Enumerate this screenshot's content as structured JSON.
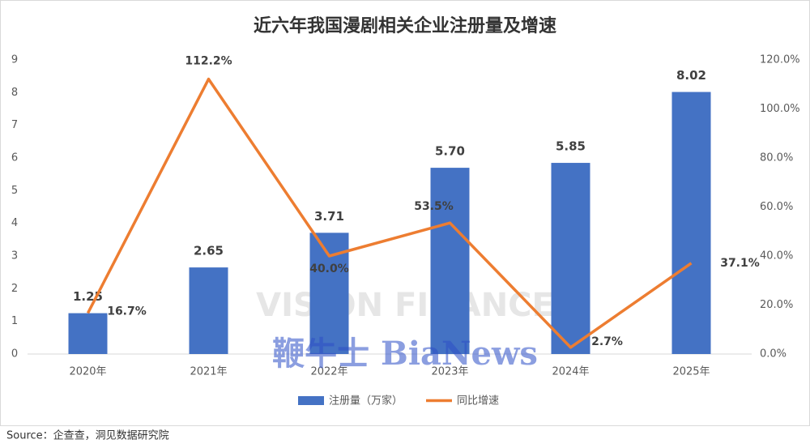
{
  "chart_data": {
    "type": "bar",
    "title": "近六年我国漫剧相关企业注册量及增速",
    "categories": [
      "2020年",
      "2021年",
      "2022年",
      "2023年",
      "2024年",
      "2025年"
    ],
    "series": [
      {
        "name": "注册量（万家）",
        "type": "bar",
        "color": "#4472c4",
        "values": [
          1.25,
          2.65,
          3.71,
          5.7,
          5.85,
          8.02
        ],
        "value_labels": [
          "1.25",
          "2.65",
          "3.71",
          "5.70",
          "5.85",
          "8.02"
        ]
      },
      {
        "name": "同比增速",
        "type": "line",
        "axis": "y2",
        "color": "#ed7d31",
        "values": [
          16.7,
          112.2,
          40.0,
          53.5,
          2.7,
          37.1
        ],
        "value_labels": [
          "16.7%",
          "112.2%",
          "40.0%",
          "53.5%",
          "2.7%",
          "37.1%"
        ]
      }
    ],
    "ylim": [
      0,
      9
    ],
    "yticks": [
      0,
      1,
      2,
      3,
      4,
      5,
      6,
      7,
      8,
      9
    ],
    "y2lim": [
      0,
      120
    ],
    "y2ticks": [
      {
        "value": 0,
        "label": "0.0%"
      },
      {
        "value": 20,
        "label": "20.0%"
      },
      {
        "value": 40,
        "label": "40.0%"
      },
      {
        "value": 60,
        "label": "60.0%"
      },
      {
        "value": 80,
        "label": "80.0%"
      },
      {
        "value": 100,
        "label": "100.0%"
      },
      {
        "value": 120,
        "label": "120.0%"
      }
    ],
    "grid": false,
    "legend": "bottom",
    "source": "Source：企查查，洞见数据研究院",
    "watermarks": [
      "VISION FINANCE",
      "鞭牛士 BiaNews"
    ]
  }
}
